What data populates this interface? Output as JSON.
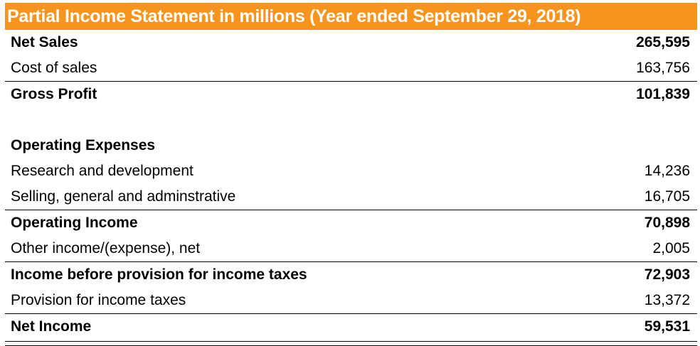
{
  "title": "Partial Income Statement in millions (Year ended September 29, 2018)",
  "rows": [
    {
      "label": "Net Sales",
      "value": "265,595"
    },
    {
      "label": "Cost of sales",
      "value": "163,756"
    },
    {
      "label": "Gross Profit",
      "value": "101,839"
    },
    {
      "label": "",
      "value": ""
    },
    {
      "label": "Operating Expenses",
      "value": ""
    },
    {
      "label": "Research and development",
      "value": "14,236"
    },
    {
      "label": "Selling, general and adminstrative",
      "value": "16,705"
    },
    {
      "label": "Operating Income",
      "value": "70,898"
    },
    {
      "label": "Other income/(expense), net",
      "value": "2,005"
    },
    {
      "label": "Income before provision for income taxes",
      "value": "72,903"
    },
    {
      "label": "Provision for income taxes",
      "value": "13,372"
    },
    {
      "label": "Net Income",
      "value": "59,531"
    }
  ]
}
